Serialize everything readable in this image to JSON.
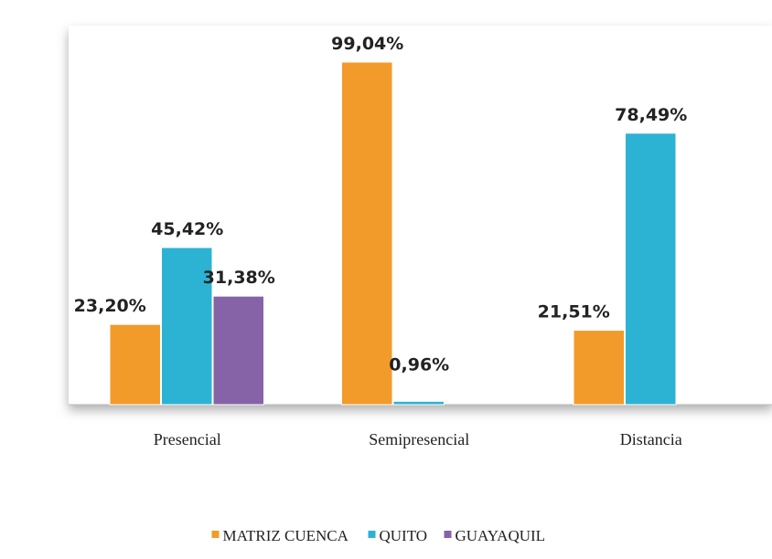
{
  "chart_data": {
    "type": "bar",
    "categories": [
      "Presencial",
      "Semipresencial",
      "Distancia"
    ],
    "series": [
      {
        "name": "MATRIZ CUENCA",
        "color": "#f29b2a",
        "values": [
          23.2,
          99.04,
          21.51
        ],
        "value_labels": [
          "23,20%",
          "99,04%",
          "21,51%"
        ]
      },
      {
        "name": "QUITO",
        "color": "#2cb3d4",
        "values": [
          45.42,
          0.96,
          78.49
        ],
        "value_labels": [
          "45,42%",
          "0,96%",
          "78,49%"
        ]
      },
      {
        "name": "GUAYAQUIL",
        "color": "#8663a6",
        "values": [
          31.38,
          null,
          null
        ],
        "value_labels": [
          "31,38%",
          null,
          null
        ]
      }
    ]
  }
}
